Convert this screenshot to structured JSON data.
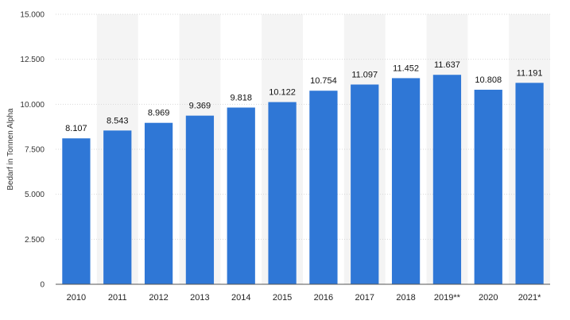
{
  "chart_data": {
    "type": "bar",
    "categories": [
      "2010",
      "2011",
      "2012",
      "2013",
      "2014",
      "2015",
      "2016",
      "2017",
      "2018",
      "2019**",
      "2020",
      "2021*"
    ],
    "values": [
      8107,
      8543,
      8969,
      9369,
      9818,
      10122,
      10754,
      11097,
      11452,
      11637,
      10808,
      11191
    ],
    "value_labels": [
      "8.107",
      "8.543",
      "8.969",
      "9.369",
      "9.818",
      "10.122",
      "10.754",
      "11.097",
      "11.452",
      "11.637",
      "10.808",
      "11.191"
    ],
    "ylabel": "Bedarf in Tonnen Alpha",
    "ylim": [
      0,
      15000
    ],
    "yticks": [
      0,
      2500,
      5000,
      7500,
      10000,
      12500,
      15000
    ],
    "ytick_labels": [
      "0",
      "2.500",
      "5.000",
      "7.500",
      "10.000",
      "12.500",
      "15.000"
    ],
    "grid": true,
    "colors": {
      "bar": "#2f77d6",
      "band": "#f4f4f4",
      "grid": "#d9d9d9"
    }
  }
}
